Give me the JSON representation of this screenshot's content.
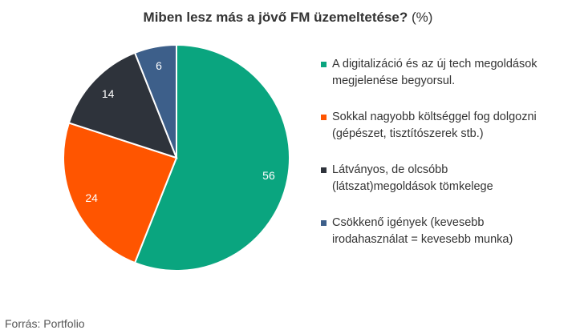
{
  "chart_data": {
    "type": "pie",
    "title_main": "Miben lesz más a jövő FM üzemeltetése?",
    "title_unit": "(%)",
    "slices": [
      {
        "label": "A digitalizáció és az új tech megoldások megjelenése begyorsul.",
        "value": 56,
        "color": "#0aa57f"
      },
      {
        "label": "Sokkal nagyobb költséggel fog dolgozni (gépészet, tisztítószerek stb.)",
        "value": 24,
        "color": "#ff5500"
      },
      {
        "label": "Látványos, de olcsóbb (látszat)megoldások tömkelege",
        "value": 14,
        "color": "#2e333b"
      },
      {
        "label": "Csökkenő igények (kevesebb irodahasználat = kevesebb munka)",
        "value": 6,
        "color": "#3d5f8a"
      }
    ],
    "legend_position": "right"
  },
  "source": "Forrás: Portfolio"
}
